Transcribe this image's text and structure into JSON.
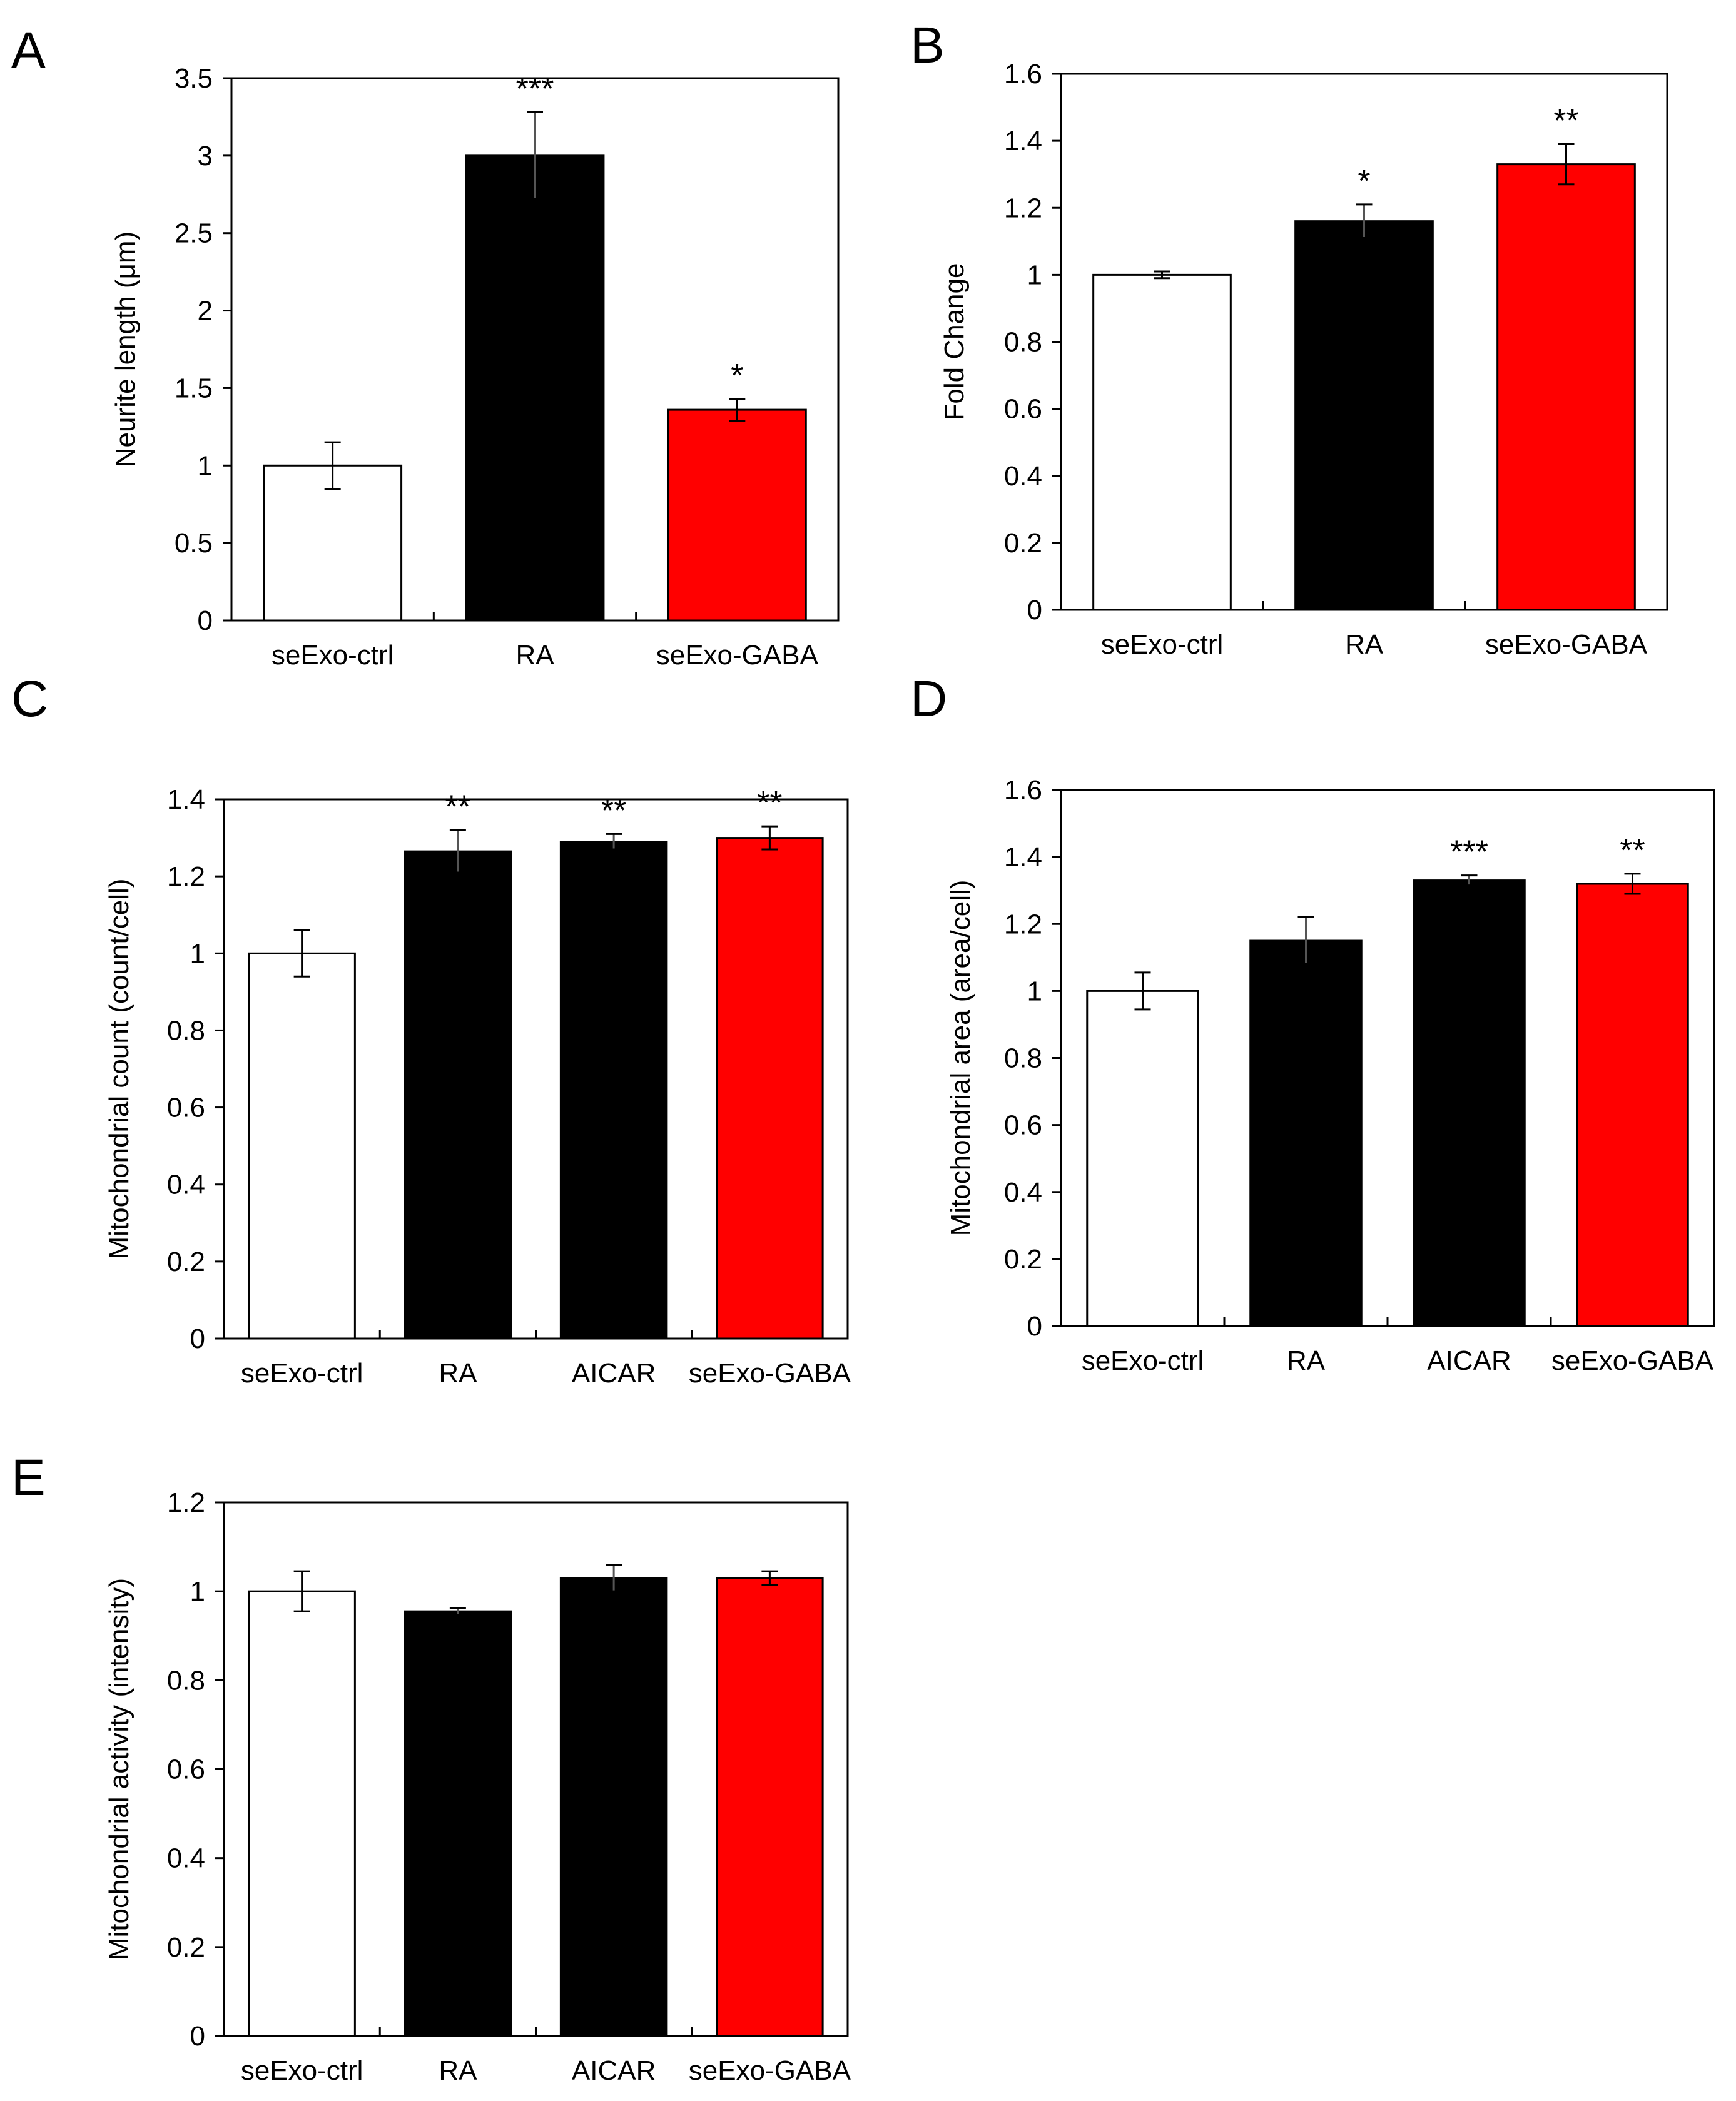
{
  "figure": {
    "colors": {
      "axis": "#000000",
      "white_bar": "#ffffff",
      "black_bar": "#000000",
      "red_bar": "#ff0000"
    }
  },
  "chart_data": [
    {
      "panel": "A",
      "type": "bar",
      "ylabel": "Neurite length (μm)",
      "ylim": [
        0,
        3.5
      ],
      "yticks": [
        0,
        0.5,
        1,
        1.5,
        2,
        2.5,
        3,
        3.5
      ],
      "ytick_labels": [
        "0",
        "0.5",
        "1",
        "1.5",
        "2",
        "2.5",
        "3",
        "3.5"
      ],
      "categories": [
        "seExo-ctrl",
        "RA",
        "seExo-GABA"
      ],
      "values": [
        1.0,
        3.0,
        1.36
      ],
      "errors": [
        0.15,
        0.28,
        0.07
      ],
      "significance": [
        "",
        "***",
        "*"
      ],
      "bar_colors": [
        "#ffffff",
        "#000000",
        "#ff0000"
      ]
    },
    {
      "panel": "B",
      "type": "bar",
      "ylabel": "Fold Change",
      "ylim": [
        0,
        1.6
      ],
      "yticks": [
        0,
        0.2,
        0.4,
        0.6,
        0.8,
        1,
        1.2,
        1.4,
        1.6
      ],
      "ytick_labels": [
        "0",
        "0.2",
        "0.4",
        "0.6",
        "0.8",
        "1",
        "1.2",
        "1.4",
        "1.6"
      ],
      "categories": [
        "seExo-ctrl",
        "RA",
        "seExo-GABA"
      ],
      "values": [
        1.0,
        1.16,
        1.33
      ],
      "errors": [
        0.01,
        0.05,
        0.06
      ],
      "significance": [
        "",
        "*",
        "**"
      ],
      "bar_colors": [
        "#ffffff",
        "#000000",
        "#ff0000"
      ]
    },
    {
      "panel": "C",
      "type": "bar",
      "ylabel": "Mitochondrial count (count/cell)",
      "ylim": [
        0,
        1.4
      ],
      "yticks": [
        0,
        0.2,
        0.4,
        0.6,
        0.8,
        1,
        1.2,
        1.4
      ],
      "ytick_labels": [
        "0",
        "0.2",
        "0.4",
        "0.6",
        "0.8",
        "1",
        "1.2",
        "1.4"
      ],
      "categories": [
        "seExo-ctrl",
        "RA",
        "AICAR",
        "seExo-GABA"
      ],
      "values": [
        1.0,
        1.265,
        1.29,
        1.3
      ],
      "errors": [
        0.06,
        0.055,
        0.02,
        0.03
      ],
      "significance": [
        "",
        "**",
        "**",
        "**"
      ],
      "bar_colors": [
        "#ffffff",
        "#000000",
        "#000000",
        "#ff0000"
      ]
    },
    {
      "panel": "D",
      "type": "bar",
      "ylabel": "Mitochondrial area (area/cell)",
      "ylim": [
        0,
        1.6
      ],
      "yticks": [
        0,
        0.2,
        0.4,
        0.6,
        0.8,
        1,
        1.2,
        1.4,
        1.6
      ],
      "ytick_labels": [
        "0",
        "0.2",
        "0.4",
        "0.6",
        "0.8",
        "1",
        "1.2",
        "1.4",
        "1.6"
      ],
      "categories": [
        "seExo-ctrl",
        "RA",
        "AICAR",
        "seExo-GABA"
      ],
      "values": [
        1.0,
        1.15,
        1.33,
        1.32
      ],
      "errors": [
        0.055,
        0.07,
        0.015,
        0.03
      ],
      "significance": [
        "",
        "",
        "***",
        "**"
      ],
      "bar_colors": [
        "#ffffff",
        "#000000",
        "#000000",
        "#ff0000"
      ]
    },
    {
      "panel": "E",
      "type": "bar",
      "ylabel": "Mitochondrial activity (intensity)",
      "ylim": [
        0,
        1.2
      ],
      "yticks": [
        0,
        0.2,
        0.4,
        0.6,
        0.8,
        1,
        1.2
      ],
      "ytick_labels": [
        "0",
        "0.2",
        "0.4",
        "0.6",
        "0.8",
        "1",
        "1.2"
      ],
      "categories": [
        "seExo-ctrl",
        "RA",
        "AICAR",
        "seExo-GABA"
      ],
      "values": [
        1.0,
        0.955,
        1.03,
        1.03
      ],
      "errors": [
        0.045,
        0.008,
        0.03,
        0.015
      ],
      "significance": [
        "",
        "",
        "",
        ""
      ],
      "bar_colors": [
        "#ffffff",
        "#000000",
        "#000000",
        "#ff0000"
      ]
    }
  ]
}
